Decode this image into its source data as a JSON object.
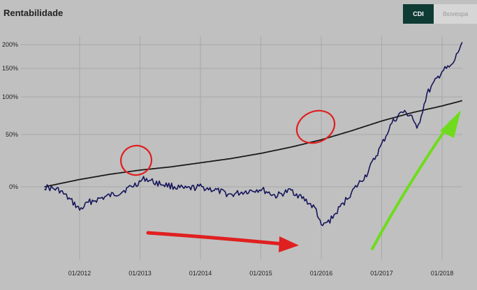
{
  "header": {
    "title": "Rentabilidade"
  },
  "toggle": {
    "options": [
      "CDI",
      "Ibovespa"
    ],
    "selected": "CDI"
  },
  "colors": {
    "fund_line": "#15155a",
    "cdi_line": "#1a1a1a",
    "active_toggle": "#0e3b34",
    "circle_annotation": "#e02020",
    "arrow_red": "#e02020",
    "arrow_green": "#6edc1c"
  },
  "chart_data": {
    "type": "line",
    "title": "Rentabilidade",
    "xlabel": "",
    "ylabel": "",
    "x_ticks": [
      "01/2012",
      "01/2013",
      "01/2014",
      "01/2015",
      "01/2016",
      "01/2017",
      "01/2018"
    ],
    "y_ticks": [
      "200%",
      "150%",
      "100%",
      "50%",
      "0%"
    ],
    "y_tick_values": [
      200,
      150,
      100,
      50,
      0
    ],
    "x_range": [
      "2011-06",
      "2018-06"
    ],
    "grid": true,
    "series": [
      {
        "role": "benchmark",
        "color": "#1a1a1a",
        "points": [
          [
            "2011-06",
            0
          ],
          [
            "2012-01",
            7
          ],
          [
            "2012-07",
            12
          ],
          [
            "2013-01",
            16
          ],
          [
            "2013-07",
            19
          ],
          [
            "2014-01",
            23
          ],
          [
            "2014-07",
            27
          ],
          [
            "2015-01",
            32
          ],
          [
            "2015-07",
            38
          ],
          [
            "2016-01",
            45
          ],
          [
            "2016-07",
            55
          ],
          [
            "2017-01",
            68
          ],
          [
            "2017-07",
            79
          ],
          [
            "2018-01",
            88
          ],
          [
            "2018-05",
            95
          ]
        ]
      },
      {
        "role": "fund",
        "color": "#15155a",
        "points": [
          [
            "2011-06",
            0
          ],
          [
            "2011-09",
            -3
          ],
          [
            "2011-12",
            -15
          ],
          [
            "2012-01",
            -20
          ],
          [
            "2012-03",
            -13
          ],
          [
            "2012-06",
            -9
          ],
          [
            "2012-09",
            -5
          ],
          [
            "2012-12",
            2
          ],
          [
            "2013-02",
            8
          ],
          [
            "2013-04",
            4
          ],
          [
            "2013-07",
            1
          ],
          [
            "2013-10",
            -2
          ],
          [
            "2014-01",
            0
          ],
          [
            "2014-04",
            -3
          ],
          [
            "2014-07",
            -7
          ],
          [
            "2014-10",
            -4
          ],
          [
            "2015-01",
            -2
          ],
          [
            "2015-04",
            -8
          ],
          [
            "2015-07",
            -3
          ],
          [
            "2015-10",
            -12
          ],
          [
            "2015-12",
            -20
          ],
          [
            "2016-01",
            -35
          ],
          [
            "2016-03",
            -28
          ],
          [
            "2016-07",
            -5
          ],
          [
            "2016-10",
            12
          ],
          [
            "2017-01",
            40
          ],
          [
            "2017-03",
            65
          ],
          [
            "2017-05",
            80
          ],
          [
            "2017-07",
            75
          ],
          [
            "2017-08",
            55
          ],
          [
            "2017-10",
            105
          ],
          [
            "2018-01",
            145
          ],
          [
            "2018-03",
            155
          ],
          [
            "2018-05",
            205
          ]
        ]
      }
    ]
  }
}
